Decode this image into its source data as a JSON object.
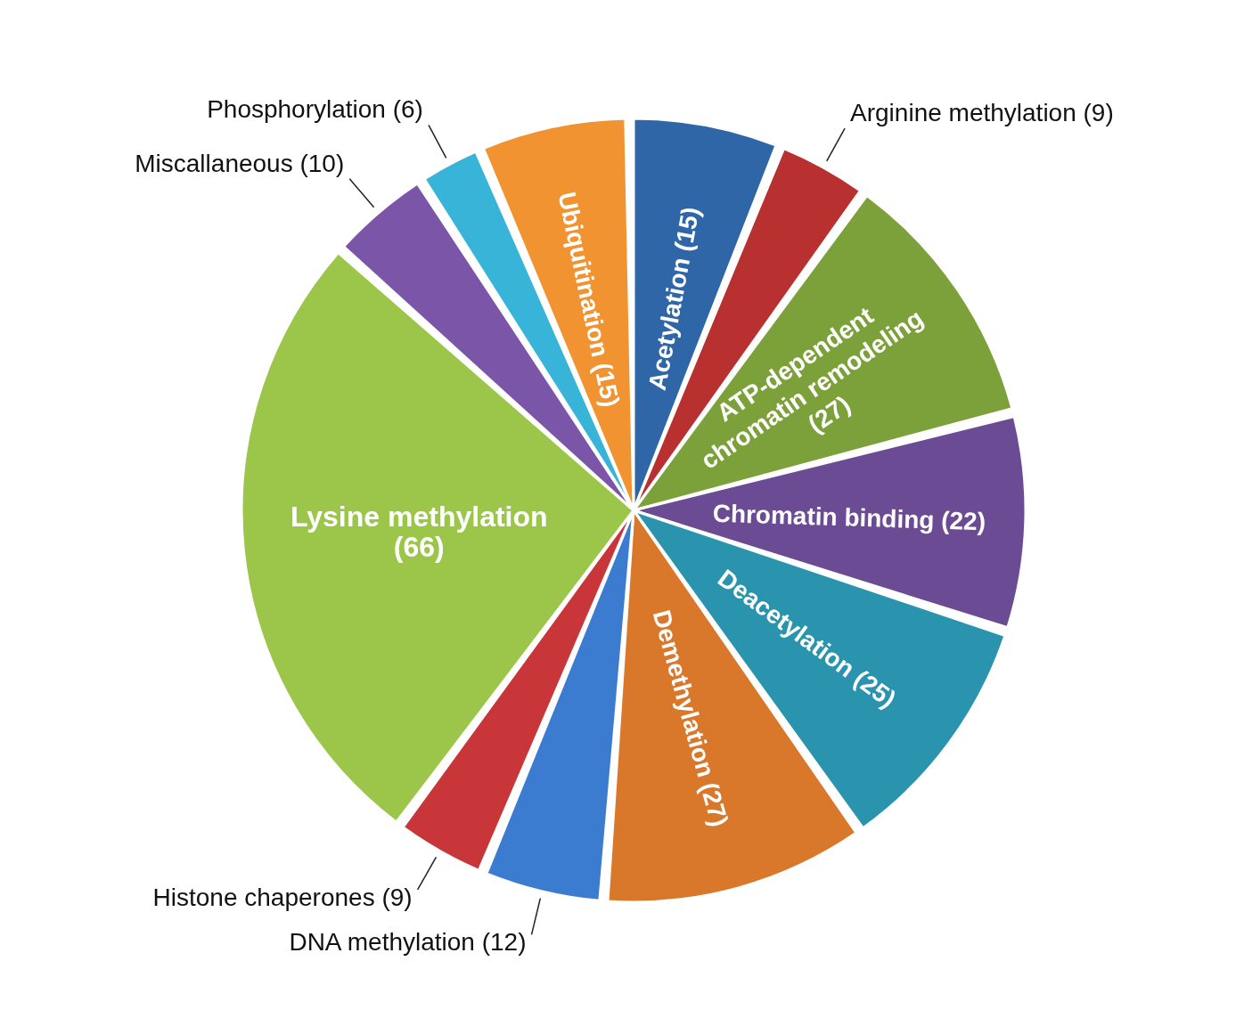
{
  "chart_data": {
    "type": "pie",
    "categories": [
      "Acetylation (15)",
      "Arginine methylation (9)",
      "ATP-dependent chromatin remodeling (27)",
      "Chromatin binding (22)",
      "Deacetylation (25)",
      "Demethylation (27)",
      "DNA methylation (12)",
      "Histone chaperones (9)",
      "Lysine methylation (66)",
      "Miscallaneous (10)",
      "Phosphorylation (6)",
      "Ubiquitination (15)"
    ],
    "values": [
      15,
      9,
      27,
      22,
      25,
      27,
      12,
      9,
      66,
      10,
      6,
      15
    ],
    "colors": [
      "#2f66a8",
      "#b8302f",
      "#7da13a",
      "#6a4b94",
      "#2a93ae",
      "#d9772a",
      "#3b7bd0",
      "#c8363a",
      "#9cc64a",
      "#7b55a8",
      "#38b4d8",
      "#f19330"
    ]
  }
}
